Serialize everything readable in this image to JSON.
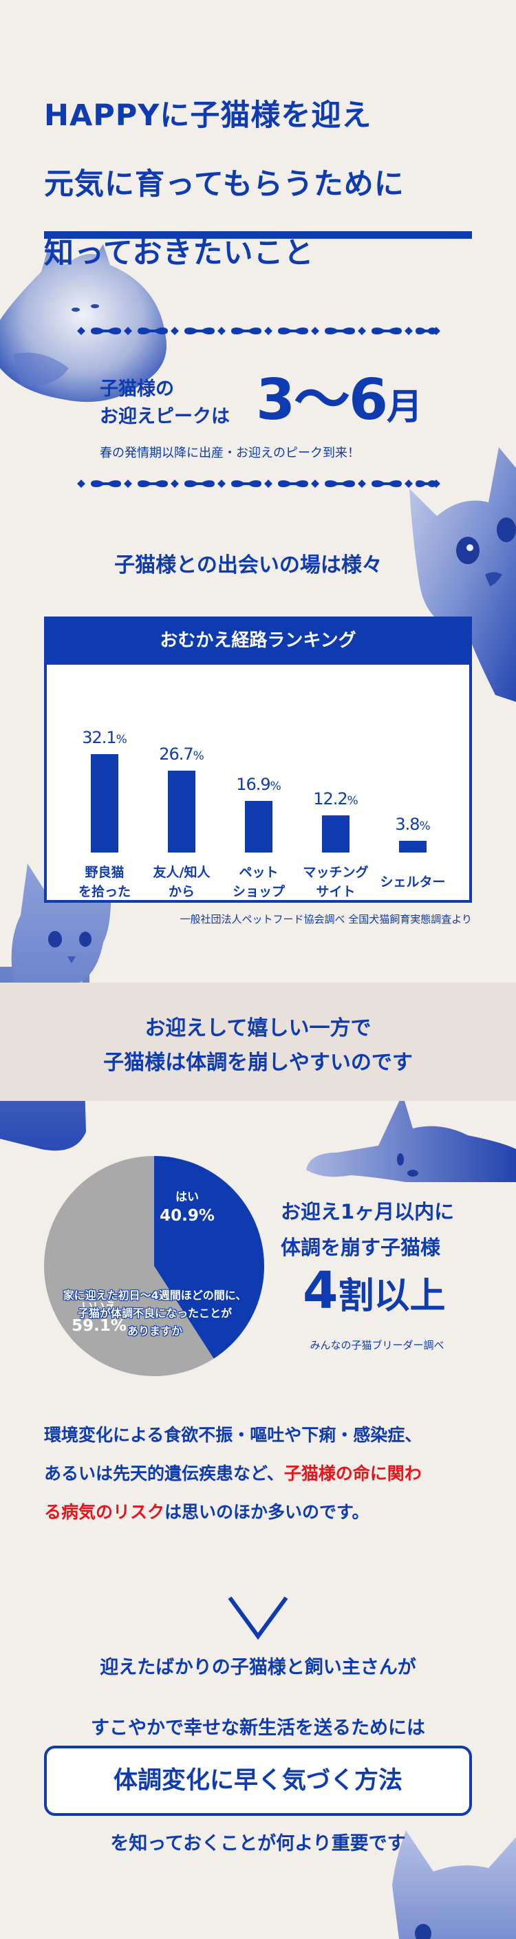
{
  "hero": {
    "title_lines": [
      "HAPPYに子猫様を迎え",
      "元気に育ってもらうために",
      "知っておきたいこと"
    ]
  },
  "peak": {
    "label_line1": "子猫様の",
    "label_line2": "お迎えピークは",
    "range": "3〜6",
    "unit": "月",
    "subtitle": "春の発情期以降に出産・お迎えのピーク到来！"
  },
  "encounter": {
    "title": "子猫様との出会いの場は様々"
  },
  "ranking": {
    "header": "おむかえ経路ランキング",
    "source": "一般社団法人ペットフード協会調べ 全国犬猫飼育実態調査より"
  },
  "band": {
    "line1": "お迎えして嬉しい一方で",
    "line2": "子猫様は体調を崩しやすいのです"
  },
  "survey": {
    "question_line1": "家に迎えた初日〜4週間ほどの間に、",
    "question_line2": "子猫が体調不良になったことが",
    "question_line3": "ありますか",
    "yes_label": "はい",
    "yes_value": "40.9%",
    "no_label": "いいえ",
    "no_value": "59.1%"
  },
  "stat": {
    "head_line1": "お迎え1ヶ月以内に",
    "head_line2": "体調を崩す子猫様",
    "big_number": "4",
    "big_suffix": "割以上",
    "source": "みんなの子猫ブリーダー調べ"
  },
  "risk": {
    "line1": "環境変化による食欲不振・嘔吐や下痢・感染症、",
    "line2_pre": "あるいは先天的遺伝疾患など、",
    "line2_red": "子猫様の命に関わ",
    "line3_red": "る病気のリスク",
    "line3_post": "は思いのほか多いのです。"
  },
  "closing": {
    "line1": "迎えたばかりの子猫様と飼い主さんが",
    "line2": "すこやかで幸せな新生活を送るためには",
    "method": "体調変化に早く気づく方法",
    "line3": "を知っておくことが何より重要です"
  },
  "colors": {
    "background": "#f2eee9",
    "band": "#e7e0db",
    "accent": "#0e3baf",
    "pie_no": "#a9a9a9",
    "highlight_red": "#e8141b"
  },
  "chart_data": [
    {
      "type": "bar",
      "title": "おむかえ経路ランキング",
      "categories": [
        "野良猫を拾った",
        "友人/知人から",
        "ペットショップ",
        "マッチングサイト",
        "シェルター"
      ],
      "category_lines": [
        [
          "野良猫",
          "を拾った"
        ],
        [
          "友人/知人",
          "から"
        ],
        [
          "ペット",
          "ショップ"
        ],
        [
          "マッチング",
          "サイト"
        ],
        [
          "シェルター"
        ]
      ],
      "values": [
        32.1,
        26.7,
        16.9,
        12.2,
        3.8
      ],
      "value_labels": [
        "32.1",
        "26.7",
        "16.9",
        "12.2",
        "3.8"
      ],
      "unit": "%",
      "xlabel": "",
      "ylabel": "",
      "source": "一般社団法人ペットフード協会調べ 全国犬猫飼育実態調査より"
    },
    {
      "type": "pie",
      "title": "家に迎えた初日〜4週間ほどの間に、子猫が体調不良になったことがありますか",
      "categories": [
        "はい",
        "いいえ"
      ],
      "values": [
        40.9,
        59.1
      ],
      "colors": [
        "#0e3baf",
        "#a9a9a9"
      ],
      "source": "みんなの子猫ブリーダー調べ"
    }
  ]
}
